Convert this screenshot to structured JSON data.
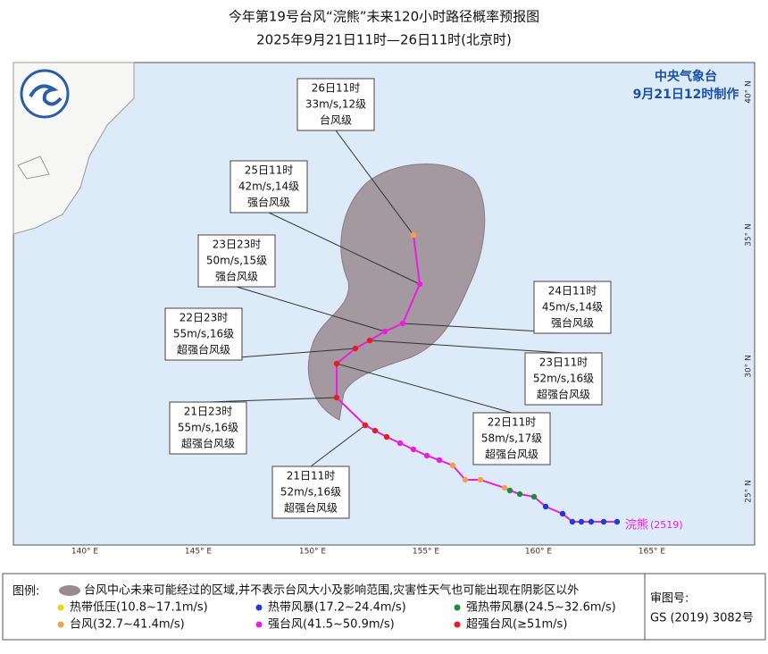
{
  "header": {
    "title": "今年第19号台风“浣熊”未来120小时路径概率预报图",
    "subtitle": "2025年9月21日11时—26日11时(北京时)"
  },
  "agency": {
    "name": "中央气象台",
    "issued": "9月21日12时制作"
  },
  "map": {
    "lon_labels": [
      "140° E",
      "145° E",
      "150° E",
      "155° E",
      "160° E",
      "165° E"
    ],
    "lat_labels": [
      "40° N",
      "35° N",
      "30° N",
      "25° N"
    ],
    "storm_name": "浣熊",
    "storm_id": "(2519)",
    "labels": [
      {
        "time": "26日11时",
        "wind": "33m/s,12级",
        "grade": "台风级"
      },
      {
        "time": "25日11时",
        "wind": "42m/s,14级",
        "grade": "强台风级"
      },
      {
        "time": "23日23时",
        "wind": "50m/s,15级",
        "grade": "强台风级"
      },
      {
        "time": "22日23时",
        "wind": "55m/s,16级",
        "grade": "超强台风级"
      },
      {
        "time": "21日23时",
        "wind": "55m/s,16级",
        "grade": "超强台风级"
      },
      {
        "time": "21日11时",
        "wind": "52m/s,16级",
        "grade": "超强台风级"
      },
      {
        "time": "24日11时",
        "wind": "45m/s,14级",
        "grade": "强台风级"
      },
      {
        "time": "23日11时",
        "wind": "52m/s,16级",
        "grade": "超强台风级"
      },
      {
        "time": "22日11时",
        "wind": "58m/s,17级",
        "grade": "超强台风级"
      }
    ]
  },
  "legend": {
    "title": "图例:",
    "cone": "台风中心未来可能经过的区域,并不表示台风大小及影响范围,灾害性天气也可能出现在阴影区以外",
    "items": [
      {
        "label": "热带低压(10.8~17.1m/s)",
        "color": "#f5d21a"
      },
      {
        "label": "热带风暴(17.2~24.4m/s)",
        "color": "#1f3bd6"
      },
      {
        "label": "强热带风暴(24.5~32.6m/s)",
        "color": "#1f8a3a"
      },
      {
        "label": "台风(32.7~41.4m/s)",
        "color": "#f4a24a"
      },
      {
        "label": "强台风(41.5~50.9m/s)",
        "color": "#e81ee0"
      },
      {
        "label": "超强台风(≥51m/s)",
        "color": "#e32020"
      }
    ]
  },
  "review": {
    "label": "审图号:",
    "code": "GS (2019) 3082号"
  }
}
